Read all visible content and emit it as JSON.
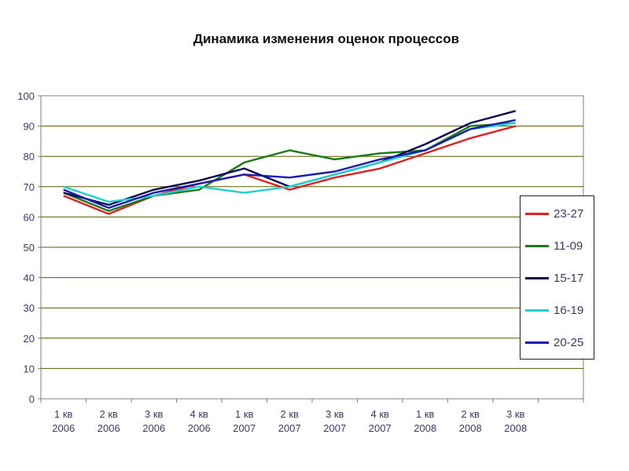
{
  "chart_data": {
    "type": "line",
    "title": "Динамика изменения оценок процессов",
    "xlabel": "",
    "ylabel": "",
    "ylim": [
      0,
      100
    ],
    "yticks": [
      0,
      10,
      20,
      30,
      40,
      50,
      60,
      70,
      80,
      90,
      100
    ],
    "grid": true,
    "legend": "right",
    "categories": [
      [
        "1 кв",
        "2006"
      ],
      [
        "2 кв",
        "2006"
      ],
      [
        "3 кв",
        "2006"
      ],
      [
        "4 кв",
        "2006"
      ],
      [
        "1 кв",
        "2007"
      ],
      [
        "2 кв",
        "2007"
      ],
      [
        "3 кв",
        "2007"
      ],
      [
        "4 кв",
        "2007"
      ],
      [
        "1 кв",
        "2008"
      ],
      [
        "2 кв",
        "2008"
      ],
      [
        "3 кв",
        "2008"
      ]
    ],
    "series": [
      {
        "name": "23-27",
        "color": "#e02020",
        "values": [
          67,
          61,
          67,
          71,
          74,
          69,
          73,
          76,
          81,
          86,
          90
        ]
      },
      {
        "name": "11-09",
        "color": "#1a7a1a",
        "values": [
          68,
          62,
          67,
          69,
          78,
          82,
          79,
          81,
          82,
          90,
          91
        ]
      },
      {
        "name": "15-17",
        "color": "#0a0a50",
        "values": [
          68,
          64,
          69,
          72,
          76,
          70,
          74,
          78,
          84,
          91,
          95
        ]
      },
      {
        "name": "16-19",
        "color": "#20d0d0",
        "values": [
          70,
          65,
          67,
          70,
          68,
          70,
          74,
          78,
          82,
          89,
          91
        ]
      },
      {
        "name": "20-25",
        "color": "#1a1ab0",
        "values": [
          69,
          63,
          68,
          71,
          74,
          73,
          75,
          79,
          82,
          89,
          92
        ]
      }
    ]
  }
}
